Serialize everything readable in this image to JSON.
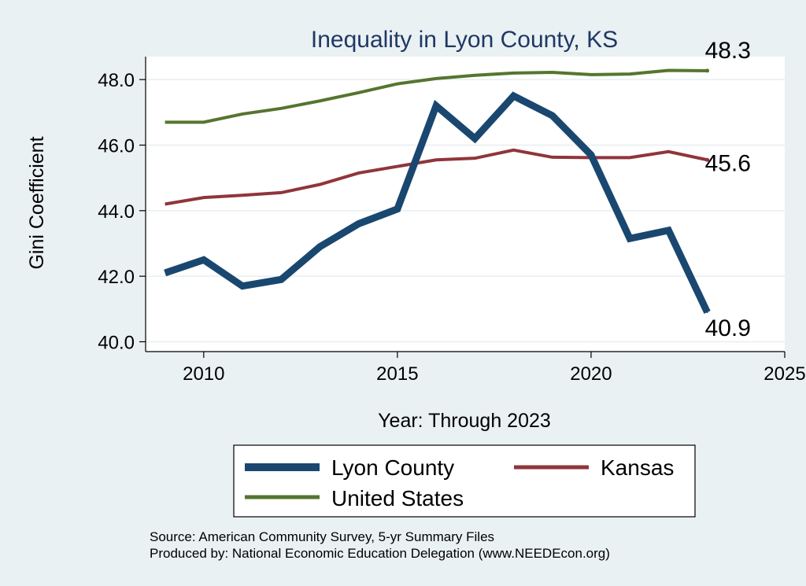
{
  "chart_data": {
    "type": "line",
    "title": "Inequality in Lyon County, KS",
    "xlabel": "Year: Through 2023",
    "ylabel": "Gini Coefficient",
    "xlim": [
      2008.5,
      2025
    ],
    "ylim": [
      39.7,
      48.7
    ],
    "xticks": [
      2010,
      2015,
      2020,
      2025
    ],
    "yticks": [
      40.0,
      42.0,
      44.0,
      46.0,
      48.0
    ],
    "ytick_labels": [
      "40.0",
      "42.0",
      "44.0",
      "46.0",
      "48.0"
    ],
    "x": [
      2009,
      2010,
      2011,
      2012,
      2013,
      2014,
      2015,
      2016,
      2017,
      2018,
      2019,
      2020,
      2021,
      2022,
      2023
    ],
    "series": [
      {
        "name": "Lyon County",
        "color": "#1a476f",
        "values": [
          42.1,
          42.5,
          41.7,
          41.9,
          42.9,
          43.6,
          44.05,
          47.2,
          46.2,
          47.5,
          46.9,
          45.7,
          43.15,
          43.4,
          40.9
        ],
        "end_label": "40.9"
      },
      {
        "name": "Kansas",
        "color": "#90353b",
        "values": [
          44.2,
          44.4,
          44.47,
          44.55,
          44.8,
          45.15,
          45.35,
          45.55,
          45.6,
          45.85,
          45.63,
          45.62,
          45.62,
          45.8,
          45.55
        ],
        "end_label": "45.6"
      },
      {
        "name": "United States",
        "color": "#55752f",
        "values": [
          46.7,
          46.7,
          46.95,
          47.12,
          47.35,
          47.6,
          47.87,
          48.03,
          48.13,
          48.2,
          48.22,
          48.15,
          48.17,
          48.28,
          48.27
        ],
        "end_label": "48.3"
      }
    ],
    "legend": {
      "placement": "bottom",
      "entries": [
        "Lyon County",
        "Kansas",
        "United States"
      ]
    },
    "grid": true,
    "notes": [
      "Source: American Community Survey, 5-yr Summary Files",
      "Produced by: National Economic Education Delegation (www.NEEDEcon.org)"
    ]
  }
}
